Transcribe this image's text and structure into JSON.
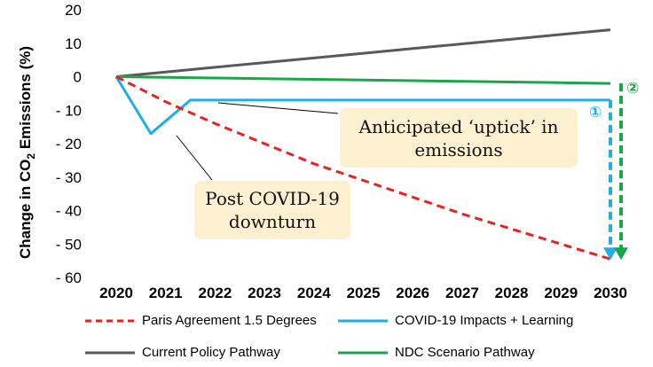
{
  "chart_data": {
    "type": "line",
    "ylabel": "Change in CO₂ Emissions (%)",
    "ylabel_main": "Change in CO",
    "ylabel_sub": "2",
    "ylabel_tail": " Emissions (%)",
    "ylim": [
      -60,
      20
    ],
    "yticks": [
      "20",
      "10",
      "0",
      "- 10",
      "- 20",
      "- 30",
      "- 40",
      "- 50",
      "- 60"
    ],
    "ytick_values": [
      20,
      10,
      0,
      -10,
      -20,
      -30,
      -40,
      -50,
      -60
    ],
    "x": [
      "2020",
      "2021",
      "2022",
      "2023",
      "2024",
      "2025",
      "2026",
      "2027",
      "2028",
      "2029",
      "2030"
    ],
    "grid": false,
    "legend_position": "bottom",
    "series": [
      {
        "name": "Paris Agreement 1.5 Degrees",
        "color": "#e8231f",
        "style": "dashed",
        "values": [
          0,
          -7.5,
          -14,
          -20,
          -26,
          -31,
          -36,
          -41,
          -45.5,
          -50,
          -54.5
        ]
      },
      {
        "name": "COVID-19 Impacts + Learning",
        "color": "#1eaee8",
        "style": "solid",
        "x": [
          2020,
          2020.7,
          2021.5,
          2030
        ],
        "values": [
          0,
          -17,
          -7,
          -7
        ]
      },
      {
        "name": "Current Policy Pathway",
        "color": "#595959",
        "style": "solid",
        "values": [
          0,
          1.4,
          2.8,
          4.2,
          5.6,
          7,
          8.4,
          9.8,
          11.2,
          12.6,
          14
        ]
      },
      {
        "name": "NDC Scenario Pathway",
        "color": "#1aa74a",
        "style": "solid",
        "values": [
          0,
          -0.2,
          -0.4,
          -0.6,
          -0.8,
          -1.0,
          -1.2,
          -1.4,
          -1.6,
          -1.8,
          -2
        ]
      }
    ],
    "annotations": {
      "uptick": {
        "line1": "Anticipated ‘uptick’ in",
        "line2": "emissions"
      },
      "downturn": {
        "line1": "Post COVID-19",
        "line2": "downturn"
      },
      "marker1": {
        "label": "①",
        "color": "#1eaee8",
        "from": -7,
        "to": -54.5
      },
      "marker2": {
        "label": "②",
        "color": "#1aa74a",
        "from": -2,
        "to": -54.5
      }
    }
  }
}
